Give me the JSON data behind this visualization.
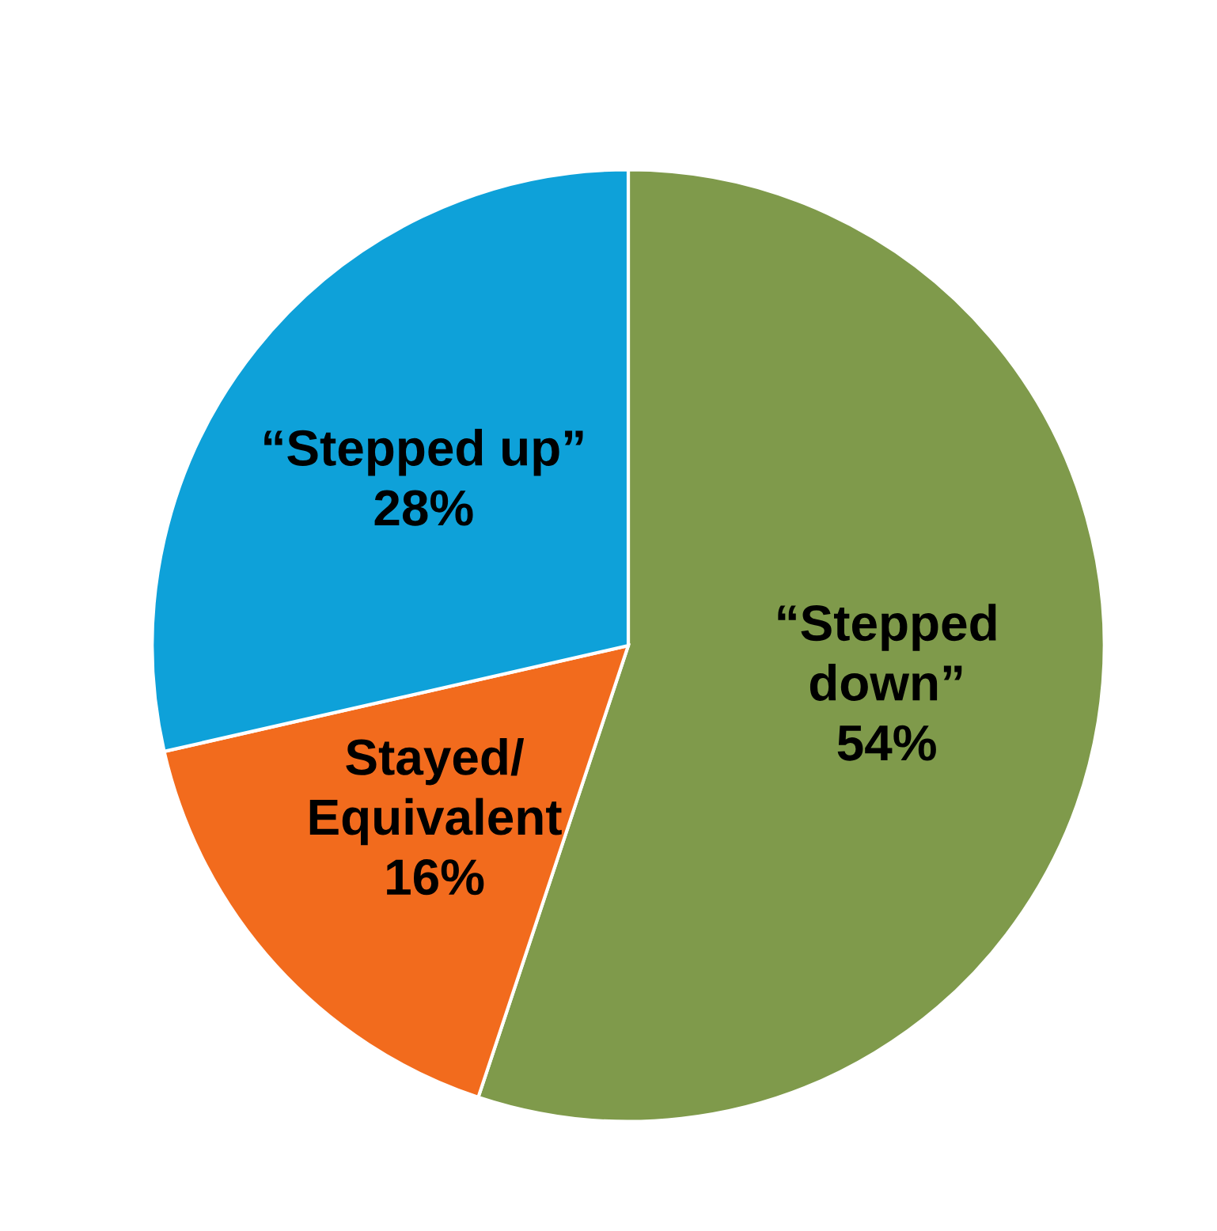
{
  "chart_data": {
    "type": "pie",
    "categories": [
      "“Stepped\ndown”",
      "Stayed/\nEquivalent",
      "“Stepped up”"
    ],
    "values": [
      54,
      16,
      28
    ],
    "value_labels": [
      "54%",
      "16%",
      "28%"
    ],
    "colors": [
      "#7f9a4b",
      "#f26b1d",
      "#0ea1d9"
    ],
    "legend": false
  }
}
